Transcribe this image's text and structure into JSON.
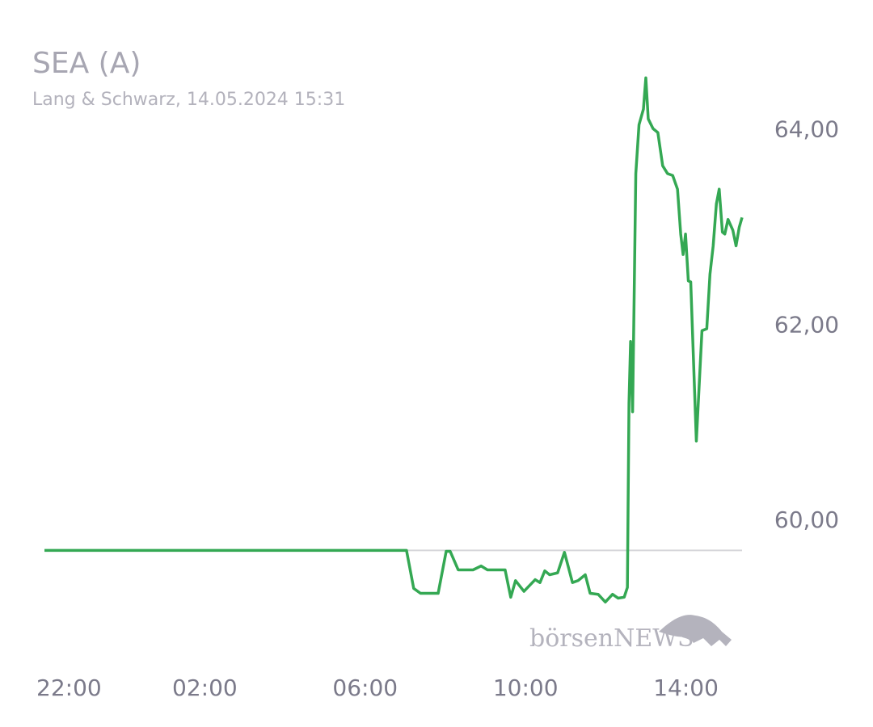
{
  "chart_data": {
    "type": "line",
    "title": "SEA (A)",
    "subtitle": "Lang & Schwarz, 14.05.2024 15:31",
    "watermark": "börsenNEWS",
    "x": [
      22.0,
      31.03,
      31.21,
      31.38,
      31.82,
      32.02,
      32.12,
      32.32,
      32.69,
      32.89,
      33.05,
      33.49,
      33.63,
      33.75,
      33.96,
      34.24,
      34.36,
      34.48,
      34.6,
      34.8,
      34.97,
      35.17,
      35.31,
      35.49,
      35.61,
      35.81,
      35.99,
      36.17,
      36.31,
      36.46,
      36.54,
      36.58,
      36.62,
      36.67,
      36.75,
      36.83,
      36.94,
      37.0,
      37.06,
      37.18,
      37.3,
      37.42,
      37.54,
      37.67,
      37.79,
      37.87,
      37.93,
      37.99,
      38.06,
      38.12,
      38.26,
      38.4,
      38.52,
      38.6,
      38.68,
      38.76,
      38.83,
      38.91,
      38.97,
      39.05,
      39.17,
      39.25,
      39.33,
      39.4
    ],
    "series": [
      {
        "color": "#34a853",
        "values": [
          59.7,
          59.7,
          59.31,
          59.26,
          59.26,
          59.69,
          59.69,
          59.5,
          59.5,
          59.54,
          59.5,
          59.5,
          59.22,
          59.39,
          59.28,
          59.4,
          59.37,
          59.49,
          59.45,
          59.47,
          59.68,
          59.37,
          59.39,
          59.45,
          59.26,
          59.25,
          59.17,
          59.25,
          59.21,
          59.22,
          59.32,
          61.21,
          61.84,
          61.12,
          63.56,
          64.06,
          64.22,
          64.54,
          64.12,
          64.02,
          63.98,
          63.64,
          63.56,
          63.54,
          63.4,
          62.94,
          62.73,
          62.94,
          62.46,
          62.45,
          60.82,
          61.95,
          61.97,
          62.53,
          62.82,
          63.25,
          63.4,
          62.96,
          62.94,
          63.09,
          62.98,
          62.82,
          63.01,
          63.11
        ]
      }
    ],
    "reference_line": 59.7,
    "xlim": [
      22,
      39.4
    ],
    "xticks": [
      {
        "value": 22,
        "label": "22:00"
      },
      {
        "value": 26,
        "label": "02:00"
      },
      {
        "value": 30,
        "label": "06:00"
      },
      {
        "value": 34,
        "label": "10:00"
      },
      {
        "value": 38,
        "label": "14:00"
      }
    ],
    "ylim": [
      58.9,
      64.8
    ],
    "yticks": [
      {
        "value": 60,
        "label": "60,00"
      },
      {
        "value": 62,
        "label": "62,00"
      },
      {
        "value": 64,
        "label": "64,00"
      }
    ]
  }
}
